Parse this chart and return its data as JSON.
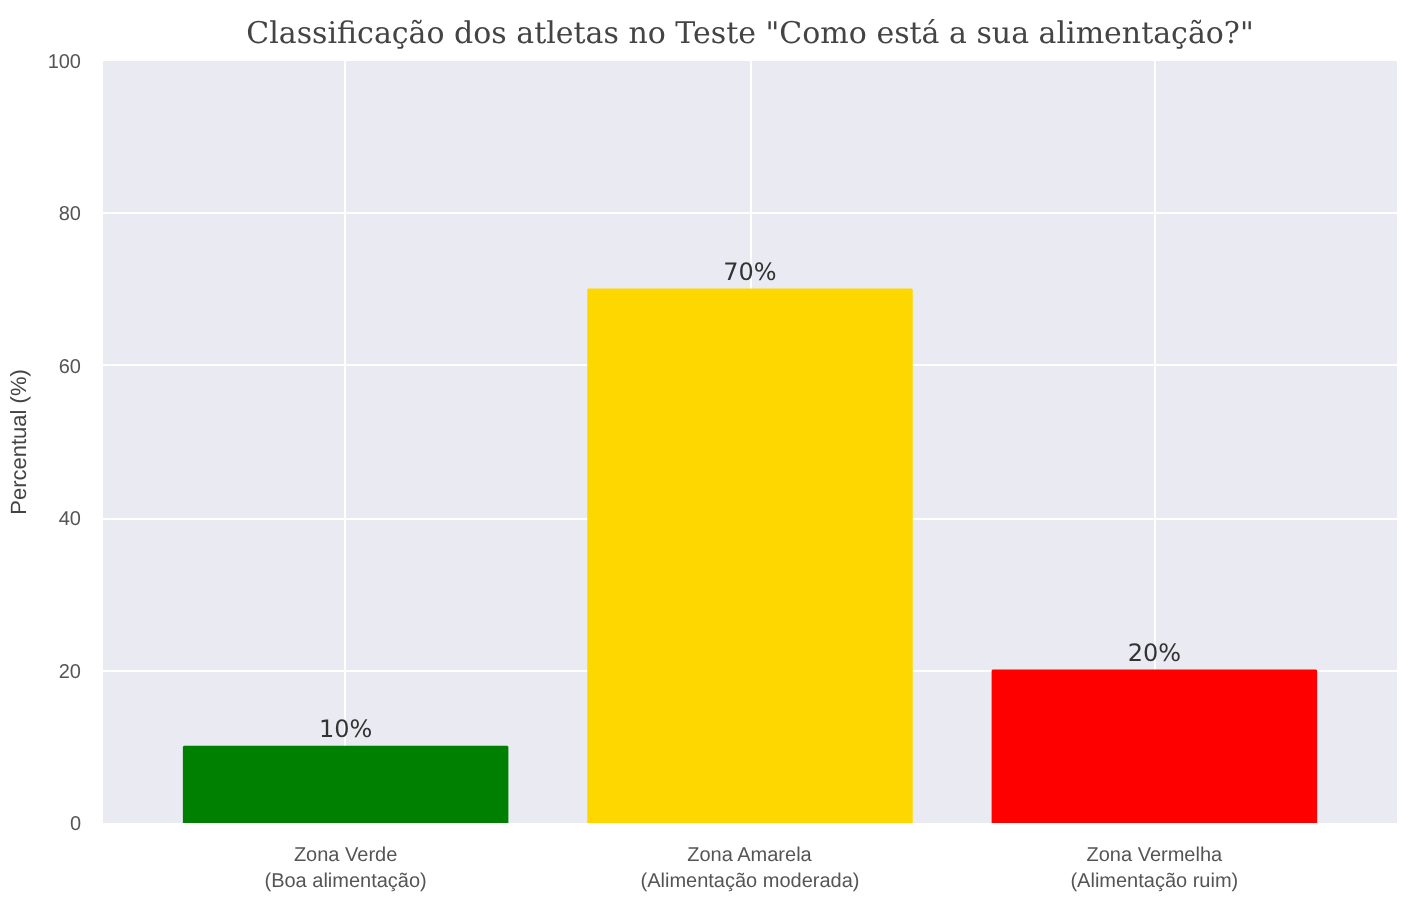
{
  "chart_data": {
    "type": "bar",
    "title": "Classificação dos atletas no Teste \"Como está a sua alimentação?\"",
    "ylabel": "Percentual (%)",
    "categories": [
      "Zona Verde\n(Boa alimentação)",
      "Zona Amarela\n(Alimentação moderada)",
      "Zona Vermelha\n(Alimentação ruim)"
    ],
    "values": [
      10,
      70,
      20
    ],
    "colors": [
      "#008000",
      "#ffd700",
      "#ff0000"
    ],
    "value_labels": [
      "10%",
      "70%",
      "20%"
    ],
    "ylim": [
      0,
      100
    ],
    "yticks": [
      0,
      20,
      40,
      60,
      80,
      100
    ],
    "grid": true
  }
}
